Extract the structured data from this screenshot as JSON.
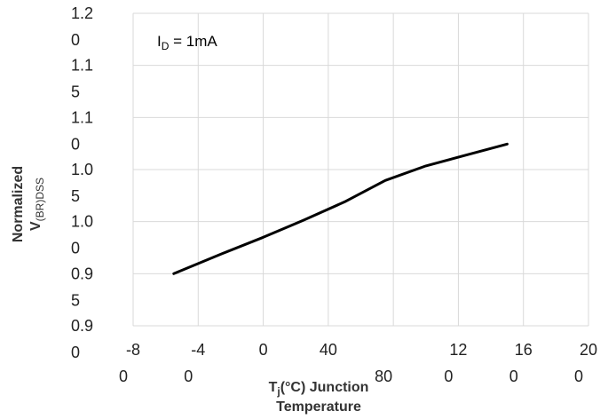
{
  "chart_data": {
    "type": "line",
    "x": [
      -55,
      -25,
      0,
      25,
      50,
      75,
      100,
      125,
      150
    ],
    "series": [
      {
        "values": [
          0.95,
          0.9695,
          0.985,
          1.0015,
          1.019,
          1.0395,
          1.0535,
          1.064,
          1.0745
        ]
      }
    ],
    "xlim": [
      -80,
      200
    ],
    "ylim": [
      0.9,
      1.2
    ],
    "x_tick_values": [
      -80,
      -40,
      0,
      40,
      80,
      120,
      160,
      200
    ],
    "y_tick_values": [
      0.9,
      0.95,
      1.0,
      1.05,
      1.1,
      1.15,
      1.2
    ],
    "x_tick_labels": [
      {
        "line1": "-8",
        "line2": "0"
      },
      {
        "line1": "-4",
        "line2": "0"
      },
      {
        "line1": "0",
        "line2": ""
      },
      {
        "line1": "40",
        "line2": ""
      },
      {
        "line1": "",
        "line2": "80"
      },
      {
        "line1": "12",
        "line2": "0"
      },
      {
        "line1": "16",
        "line2": "0"
      },
      {
        "line1": "20",
        "line2": "0"
      }
    ],
    "y_tick_labels": [
      {
        "line1": "0.9",
        "line2": "0"
      },
      {
        "line1": "0.9",
        "line2": "5"
      },
      {
        "line1": "1.0",
        "line2": "0"
      },
      {
        "line1": "1.0",
        "line2": "5"
      },
      {
        "line1": "1.1",
        "line2": "0"
      },
      {
        "line1": "1.1",
        "line2": "5"
      },
      {
        "line1": "1.2",
        "line2": "0"
      }
    ],
    "xlabel": {
      "line1_main": "T",
      "line1_sub": "j",
      "line1_rest": "(°C) Junction",
      "line2": "Temperature"
    },
    "ylabel": {
      "line1": "Normalized",
      "line2_main": "V",
      "line2_sub": "(BR)DSS"
    },
    "annotation": {
      "main": "I",
      "sub": "D",
      "rest": " = 1mA"
    },
    "grid": true,
    "line_color": "#000000",
    "grid_color": "#d9d9d9"
  }
}
